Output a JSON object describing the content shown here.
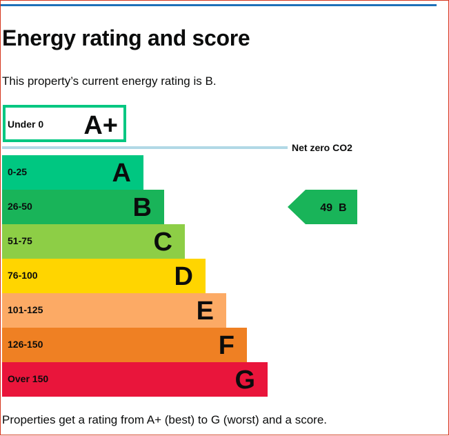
{
  "page": {
    "title": "Energy rating and score",
    "intro": "This property’s current energy rating is B.",
    "footer": "Properties get a rating from A+ (best) to G (worst) and a score."
  },
  "chart_data": {
    "type": "bar",
    "categories": [
      "A+",
      "A",
      "B",
      "C",
      "D",
      "E",
      "F",
      "G"
    ],
    "ranges": [
      "Under 0",
      "0-25",
      "26-50",
      "51-75",
      "76-100",
      "101-125",
      "126-150",
      "Over 150"
    ],
    "colors": [
      "#00c781",
      "#00c781",
      "#19b459",
      "#8dce46",
      "#ffd500",
      "#fcaa65",
      "#ef8023",
      "#e9153b"
    ],
    "netzero_label": "Net zero CO2",
    "netzero_line_color": "#b1d9e6",
    "current": {
      "score": "49",
      "rating": "B",
      "color": "#19b459"
    }
  }
}
